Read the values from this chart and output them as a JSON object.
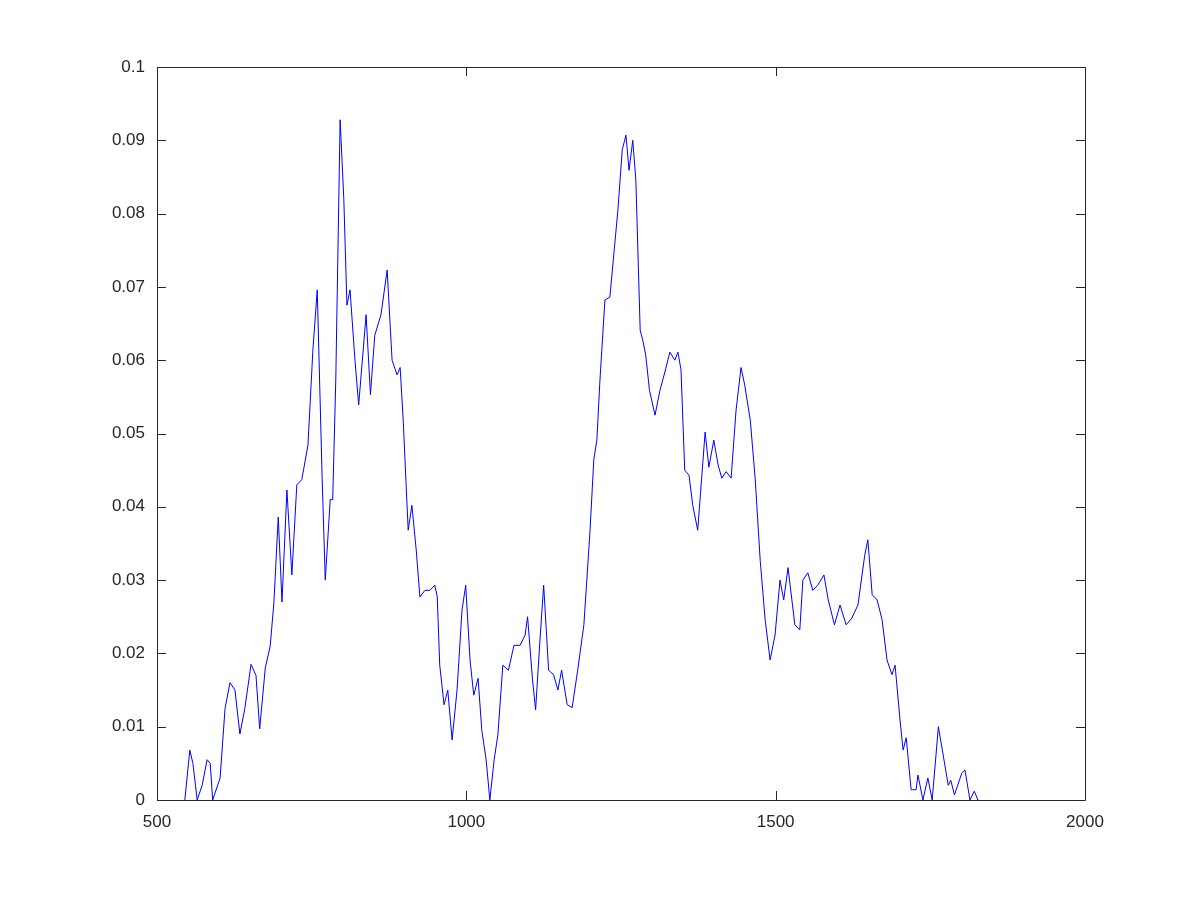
{
  "chart_data": {
    "type": "line",
    "xlim": [
      500,
      2000
    ],
    "xticks": [
      500,
      1000,
      1500,
      2000
    ],
    "ylim": [
      0,
      0.1
    ],
    "yticks": [
      0,
      0.01,
      0.02,
      0.03,
      0.04,
      0.05,
      0.06,
      0.07,
      0.08,
      0.09,
      0.1
    ],
    "marker": "none",
    "line_style": "solid",
    "series": [
      {
        "color": "#0000ff",
        "x": [
          545,
          553,
          558,
          565,
          573,
          581,
          586,
          590,
          602,
          610,
          618,
          626,
          634,
          642,
          652,
          660,
          666,
          675,
          683,
          689,
          696,
          702,
          710,
          718,
          726,
          734,
          744,
          752,
          759,
          767,
          772,
          780,
          784,
          789,
          796,
          802,
          807,
          812,
          820,
          826,
          838,
          845,
          852,
          862,
          872,
          880,
          888,
          893,
          898,
          906,
          912,
          919,
          925,
          933,
          941,
          949,
          953,
          957,
          964,
          970,
          977,
          985,
          993,
          999,
          1006,
          1012,
          1019,
          1025,
          1032,
          1038,
          1045,
          1051,
          1059,
          1068,
          1077,
          1087,
          1095,
          1099,
          1107,
          1112,
          1119,
          1125,
          1133,
          1141,
          1148,
          1154,
          1163,
          1171,
          1180,
          1190,
          1200,
          1206,
          1211,
          1216,
          1224,
          1232,
          1239,
          1245,
          1252,
          1258,
          1263,
          1269,
          1274,
          1281,
          1285,
          1290,
          1296,
          1305,
          1313,
          1321,
          1329,
          1337,
          1342,
          1347,
          1353,
          1360,
          1366,
          1374,
          1386,
          1392,
          1400,
          1407,
          1413,
          1420,
          1428,
          1436,
          1444,
          1450,
          1459,
          1467,
          1475,
          1483,
          1491,
          1499,
          1507,
          1513,
          1520,
          1531,
          1539,
          1544,
          1552,
          1560,
          1568,
          1578,
          1585,
          1595,
          1604,
          1614,
          1623,
          1633,
          1644,
          1649,
          1656,
          1664,
          1672,
          1680,
          1688,
          1693,
          1701,
          1706,
          1711,
          1719,
          1727,
          1730,
          1738,
          1746,
          1753,
          1763,
          1779,
          1783,
          1789,
          1801,
          1806,
          1814,
          1821,
          1827
        ],
        "values": [
          0,
          0.0068,
          0.005,
          0,
          0.002,
          0.0055,
          0.005,
          0,
          0.003,
          0.0125,
          0.016,
          0.015,
          0.009,
          0.0125,
          0.0185,
          0.017,
          0.0097,
          0.018,
          0.021,
          0.027,
          0.0386,
          0.027,
          0.0423,
          0.0307,
          0.043,
          0.0437,
          0.0484,
          0.0614,
          0.0696,
          0.0437,
          0.03,
          0.041,
          0.041,
          0.0573,
          0.0928,
          0.0819,
          0.0675,
          0.0696,
          0.06,
          0.0539,
          0.0662,
          0.0553,
          0.0634,
          0.0662,
          0.0723,
          0.06,
          0.058,
          0.059,
          0.0518,
          0.0368,
          0.0402,
          0.0341,
          0.0277,
          0.0286,
          0.0286,
          0.0293,
          0.0277,
          0.0184,
          0.013,
          0.015,
          0.0082,
          0.015,
          0.0259,
          0.0293,
          0.0191,
          0.0143,
          0.0166,
          0.0095,
          0.0055,
          0,
          0.0055,
          0.0089,
          0.0184,
          0.0177,
          0.0211,
          0.0211,
          0.0225,
          0.025,
          0.0164,
          0.0123,
          0.0218,
          0.0293,
          0.0177,
          0.0171,
          0.015,
          0.0177,
          0.013,
          0.0126,
          0.0177,
          0.0239,
          0.0368,
          0.0464,
          0.0491,
          0.0573,
          0.0682,
          0.0686,
          0.075,
          0.0805,
          0.0887,
          0.0907,
          0.0859,
          0.09,
          0.0846,
          0.0641,
          0.0628,
          0.0607,
          0.0559,
          0.0525,
          0.0559,
          0.0584,
          0.0611,
          0.06,
          0.0611,
          0.0587,
          0.045,
          0.0443,
          0.0402,
          0.0368,
          0.0502,
          0.0454,
          0.0491,
          0.0457,
          0.0439,
          0.0448,
          0.0439,
          0.0532,
          0.059,
          0.0566,
          0.0518,
          0.0437,
          0.0327,
          0.0246,
          0.0191,
          0.0225,
          0.03,
          0.0273,
          0.0317,
          0.0239,
          0.0232,
          0.03,
          0.031,
          0.0286,
          0.0293,
          0.0307,
          0.0273,
          0.0239,
          0.0266,
          0.0239,
          0.0248,
          0.0266,
          0.0334,
          0.0355,
          0.028,
          0.0273,
          0.0246,
          0.0191,
          0.0171,
          0.0184,
          0.0109,
          0.0068,
          0.0085,
          0.0014,
          0.0014,
          0.0034,
          0,
          0.003,
          0,
          0.01,
          0.002,
          0.0027,
          0.0007,
          0.0037,
          0.0041,
          0,
          0.0012,
          0
        ]
      }
    ]
  }
}
